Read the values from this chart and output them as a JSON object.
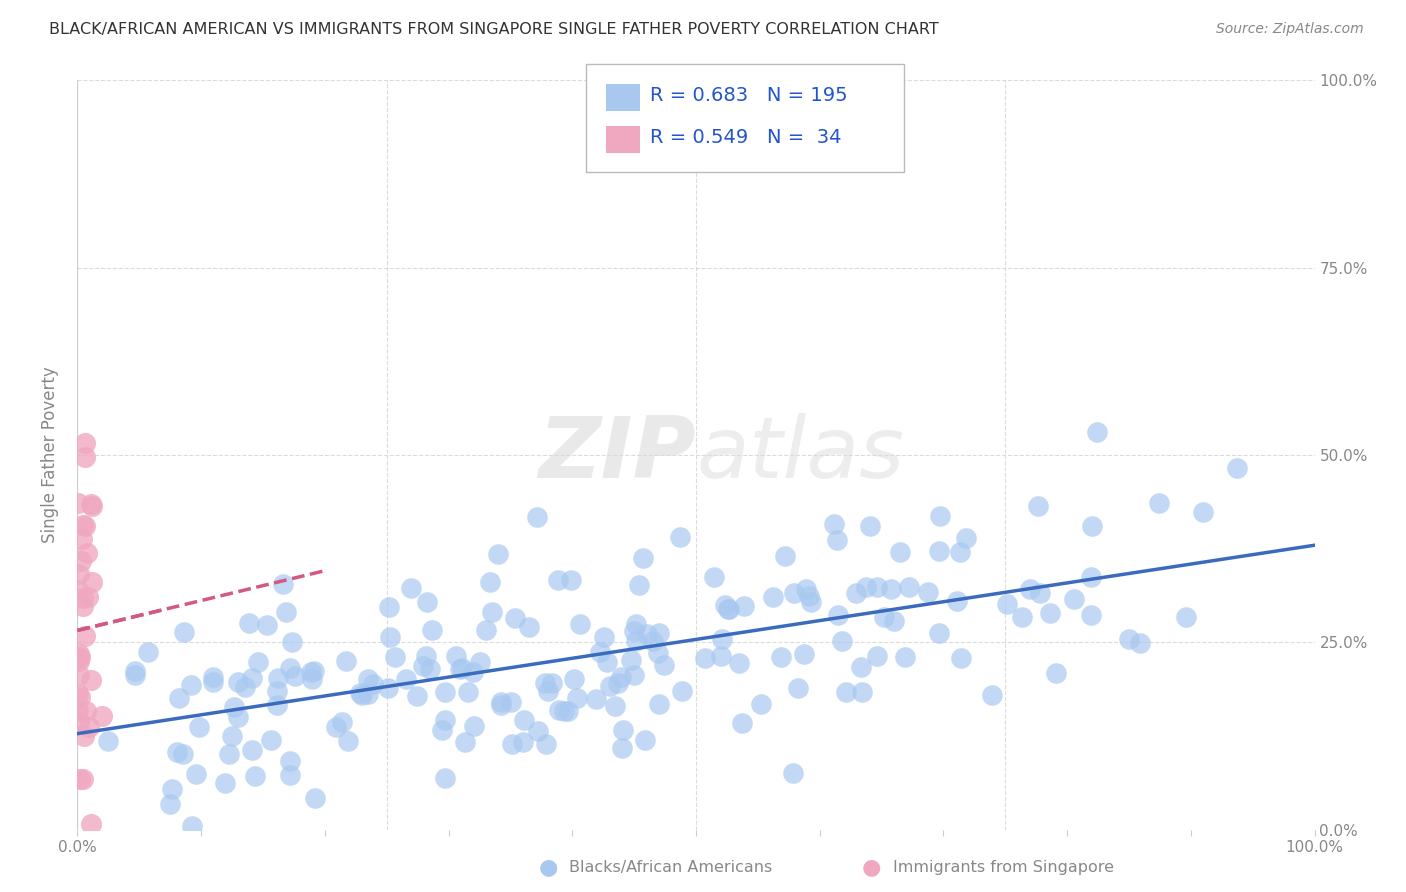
{
  "title": "BLACK/AFRICAN AMERICAN VS IMMIGRANTS FROM SINGAPORE SINGLE FATHER POVERTY CORRELATION CHART",
  "source": "Source: ZipAtlas.com",
  "ylabel": "Single Father Poverty",
  "xlim": [
    0,
    1.0
  ],
  "ylim": [
    0,
    1.0
  ],
  "blue_R": 0.683,
  "blue_N": 195,
  "pink_R": 0.549,
  "pink_N": 34,
  "blue_color": "#a8c8f0",
  "pink_color": "#f0a8c0",
  "blue_line_color": "#3a6bbf",
  "pink_line_color": "#d45880",
  "legend_labels": [
    "Blacks/African Americans",
    "Immigrants from Singapore"
  ],
  "watermark_zip": "ZIP",
  "watermark_atlas": "atlas",
  "background_color": "#ffffff",
  "grid_color": "#cccccc",
  "title_color": "#333333",
  "source_color": "#888888",
  "tick_color": "#888888"
}
